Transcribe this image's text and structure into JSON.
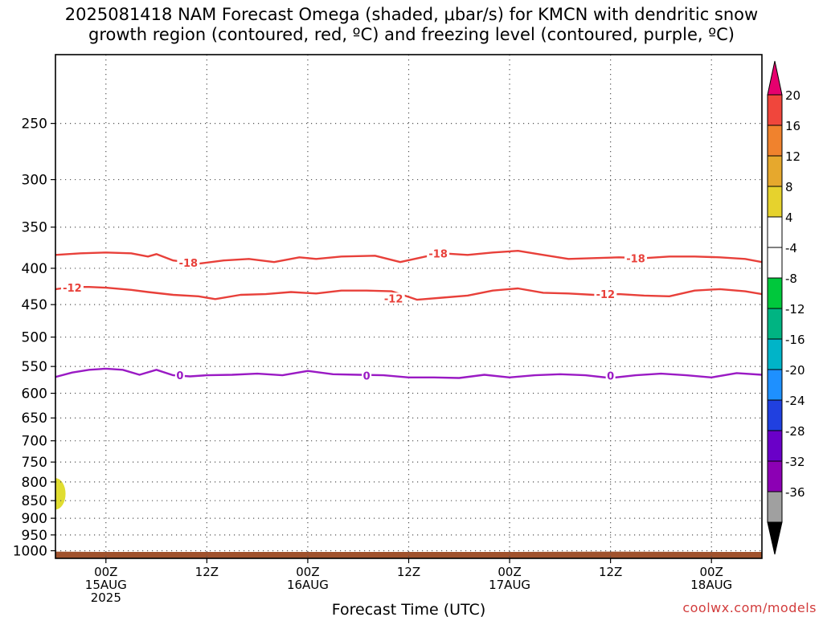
{
  "title": "2025081418 NAM Forecast Omega (shaded, μbar/s) for KMCN with dendritic snow\ngrowth region (contoured, red, ºC) and freezing level (contoured, purple, ºC)",
  "credit": "coolwx.com/models",
  "chart_data": {
    "type": "time-height cross section",
    "xlabel": "Forecast Time (UTC)",
    "ylabel": "",
    "x_unit": "forecast hour",
    "xlim": [
      -6,
      78
    ],
    "ylim_hPa": [
      200,
      1025
    ],
    "log_pressure_axis": true,
    "grid": true,
    "pressure_ticks": [
      250,
      300,
      350,
      400,
      450,
      500,
      550,
      600,
      650,
      700,
      750,
      800,
      850,
      900,
      950,
      1000
    ],
    "time_ticks": [
      {
        "hour": 0,
        "lines": [
          "00Z",
          "15AUG",
          "2025"
        ]
      },
      {
        "hour": 12,
        "lines": [
          "12Z"
        ]
      },
      {
        "hour": 24,
        "lines": [
          "00Z",
          "16AUG"
        ]
      },
      {
        "hour": 36,
        "lines": [
          "12Z"
        ]
      },
      {
        "hour": 48,
        "lines": [
          "00Z",
          "17AUG"
        ]
      },
      {
        "hour": 60,
        "lines": [
          "12Z"
        ]
      },
      {
        "hour": 72,
        "lines": [
          "00Z",
          "18AUG"
        ]
      }
    ],
    "contours": [
      {
        "level": "-18",
        "color": "#e8403a",
        "x": [
          -6,
          -3,
          0,
          3,
          5,
          6,
          8,
          11,
          14,
          17,
          20,
          23,
          25,
          28,
          32,
          35,
          38,
          40,
          43,
          46,
          49,
          52,
          55,
          58,
          61,
          64,
          67,
          70,
          73,
          76,
          78
        ],
        "p": [
          383,
          381,
          380,
          381,
          385,
          382,
          390,
          394,
          390,
          388,
          392,
          386,
          388,
          385,
          384,
          392,
          385,
          381,
          383,
          380,
          378,
          383,
          388,
          387,
          386,
          387,
          385,
          385,
          386,
          388,
          392
        ],
        "labels": [
          {
            "x": 9.8,
            "p": 394,
            "text": "-18"
          },
          {
            "x": 39.5,
            "p": 382,
            "text": "-18"
          },
          {
            "x": 63,
            "p": 388,
            "text": "-18"
          }
        ]
      },
      {
        "level": "-12",
        "color": "#e8403a",
        "x": [
          -6,
          -4,
          -2,
          0,
          3,
          5,
          8,
          11,
          13,
          16,
          19,
          22,
          25,
          28,
          31,
          34,
          37,
          40,
          43,
          46,
          49,
          52,
          55,
          58,
          61,
          64,
          67,
          70,
          73,
          76,
          78
        ],
        "p": [
          428,
          425,
          425,
          426,
          429,
          432,
          436,
          438,
          442,
          436,
          435,
          432,
          434,
          430,
          430,
          431,
          443,
          440,
          437,
          430,
          427,
          433,
          434,
          436,
          435,
          437,
          438,
          430,
          428,
          431,
          435
        ],
        "labels": [
          {
            "x": -4,
            "p": 427,
            "text": "-12"
          },
          {
            "x": 34.2,
            "p": 442,
            "text": "-12"
          },
          {
            "x": 59.4,
            "p": 436,
            "text": "-12"
          }
        ]
      },
      {
        "level": "0",
        "color": "#9a1ac4",
        "x": [
          -6,
          -4,
          -2,
          0,
          2,
          4,
          6,
          8,
          10,
          12,
          15,
          18,
          21,
          24,
          27,
          30,
          33,
          36,
          39,
          42,
          45,
          48,
          51,
          54,
          57,
          60,
          63,
          66,
          69,
          72,
          75,
          78
        ],
        "p": [
          569,
          561,
          556,
          554,
          556,
          565,
          556,
          566,
          568,
          566,
          565,
          563,
          566,
          558,
          564,
          565,
          566,
          570,
          570,
          571,
          565,
          570,
          566,
          564,
          566,
          571,
          566,
          563,
          566,
          570,
          562,
          565
        ],
        "labels": [
          {
            "x": 8.8,
            "p": 567,
            "text": "0"
          },
          {
            "x": 31,
            "p": 568,
            "text": "0"
          },
          {
            "x": 60,
            "p": 568,
            "text": "0"
          }
        ]
      }
    ],
    "shaded_regions": [
      {
        "name": "omega 4 to 8",
        "color": "#e0dd30",
        "x_range": [
          -6,
          -4.8
        ],
        "p_range": [
          790,
          875
        ]
      }
    ],
    "terrain": {
      "color": "#a0522d",
      "surface_hPa": [
        1003,
        1004,
        1004,
        1004,
        1004,
        1004,
        1003,
        1004
      ],
      "x": [
        -6,
        0,
        12,
        24,
        36,
        48,
        60,
        78
      ]
    },
    "colorbar": {
      "colors": [
        "#000000",
        "#a0a0a0",
        "#8c00b4",
        "#6a00c8",
        "#2040e0",
        "#1e90ff",
        "#00b4c8",
        "#00b482",
        "#00c83c",
        "#ffffff",
        "#ffffff",
        "#e6d22d",
        "#e6a82d",
        "#f0822d",
        "#f0463c",
        "#e6006e"
      ],
      "labels": [
        "20",
        "16",
        "12",
        "8",
        "4",
        "-4",
        "-8",
        "-12",
        "-16",
        "-20",
        "-24",
        "-28",
        "-32",
        "-36"
      ]
    }
  }
}
